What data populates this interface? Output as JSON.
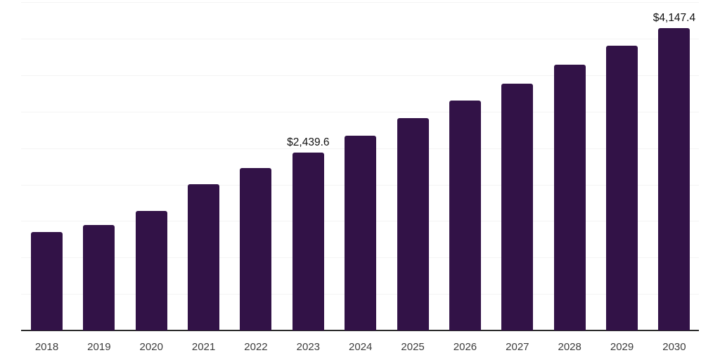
{
  "chart_data": {
    "type": "bar",
    "title": "",
    "xlabel": "",
    "ylabel": "",
    "categories": [
      "2018",
      "2019",
      "2020",
      "2021",
      "2022",
      "2023",
      "2024",
      "2025",
      "2026",
      "2027",
      "2028",
      "2029",
      "2030"
    ],
    "values": [
      1355,
      1445,
      1635,
      2010,
      2230,
      2439.6,
      2675,
      2915,
      3155,
      3385,
      3645,
      3905,
      4147.4
    ],
    "data_labels": {
      "2023": "$2,439.6",
      "2030": "$4,147.4"
    },
    "ylim": [
      0,
      4500
    ],
    "gridline_step": 500,
    "grid": true,
    "y_axis_tick_labels_visible": false,
    "legend": false,
    "colors": {
      "bar": "#321247",
      "axis_line": "#2b2b2b",
      "gridline": "#f4f4f4",
      "tick_label": "#3d3d3d",
      "data_label": "#111111",
      "background": "#ffffff"
    }
  }
}
